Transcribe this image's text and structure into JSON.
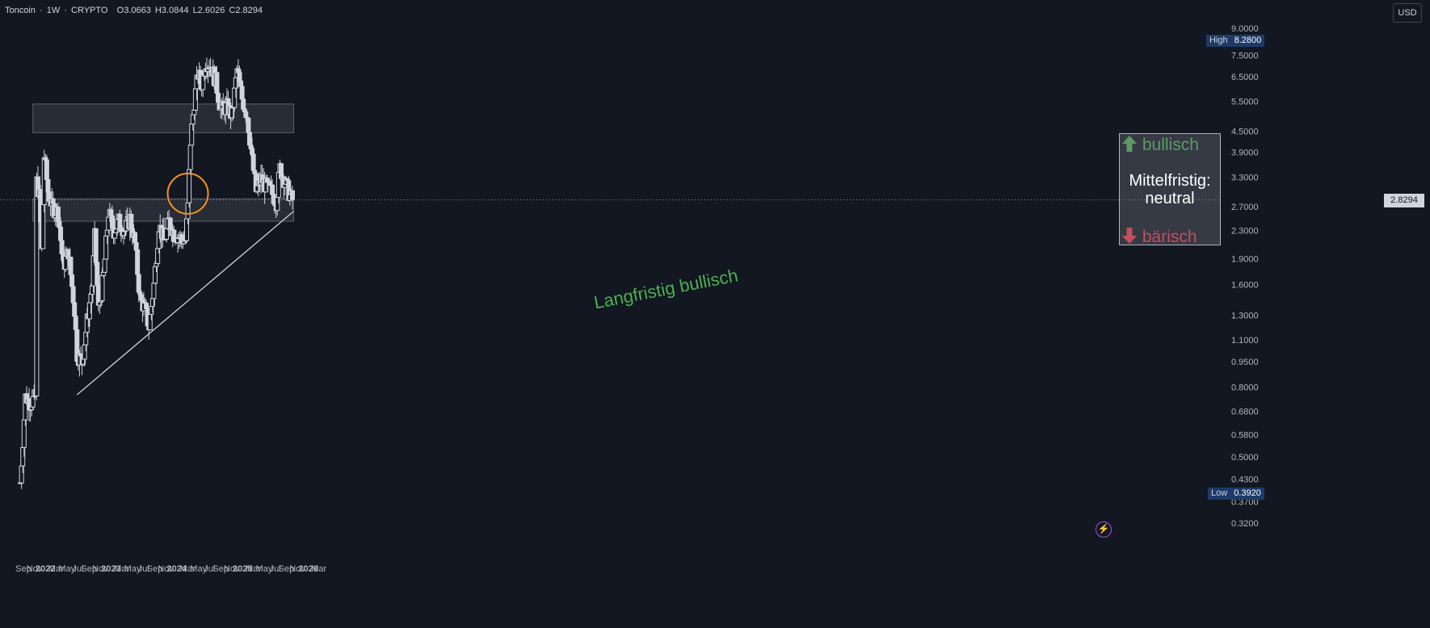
{
  "header": {
    "symbol": "Toncoin",
    "timeframe": "1W",
    "exchange": "CRYPTO",
    "open": "O3.0663",
    "high": "H3.0844",
    "low": "L2.6026",
    "close": "C2.8294"
  },
  "currency_button": "USD",
  "price_axis": {
    "labels": [
      "9.0000",
      "7.5000",
      "6.5000",
      "5.5000",
      "4.5000",
      "3.9000",
      "3.3000",
      "2.7000",
      "2.3000",
      "1.9000",
      "1.6000",
      "1.3000",
      "1.1000",
      "0.9500",
      "0.8000",
      "0.6800",
      "0.5800",
      "0.5000",
      "0.4300",
      "0.3700",
      "0.3200"
    ],
    "scale": "log",
    "high_label": "High",
    "high_value": "8.2800",
    "low_label": "Low",
    "low_value": "0.3920",
    "last_price": "2.8294"
  },
  "time_axis": {
    "labels": [
      "Sep",
      "Nov",
      "2022",
      "Mar",
      "May",
      "Jul",
      "Sep",
      "Nov",
      "2023",
      "Mar",
      "May",
      "Jul",
      "Sep",
      "Nov",
      "2024",
      "Mar",
      "May",
      "Jul",
      "Sep",
      "Nov",
      "2025",
      "Mar",
      "May",
      "Jul",
      "Sep",
      "Nov",
      "2026",
      "Mar"
    ],
    "bold": [
      "2022",
      "2023",
      "2024",
      "2025",
      "2026"
    ]
  },
  "annotations": {
    "bullish_label": "bullisch",
    "bearish_label": "bärisch",
    "neutral_line1": "Mittelfristig:",
    "neutral_line2": "neutral",
    "long_term": "Langfristig bullisch"
  },
  "colors": {
    "background": "#131722",
    "candle": "#d1d4dc",
    "zone_fill": "rgba(120,123,134,0.22)",
    "bullish_green": "#4caf50",
    "bearish_red": "#f23645",
    "highlight_circle": "#f7931a",
    "badge_blue": "#1e3a6a"
  },
  "icons": {
    "bull_arrow": "arrow-up-icon",
    "bear_arrow": "arrow-down-icon",
    "bolt": "lightning-icon"
  },
  "chart_data": {
    "type": "candlestick",
    "scale": "log",
    "ylim": [
      0.3,
      9.5
    ],
    "anchors": [
      [
        "2021-08-15",
        0.42
      ],
      [
        "2021-09-12",
        0.75
      ],
      [
        "2021-10-10",
        0.72
      ],
      [
        "2021-11-07",
        0.75
      ],
      [
        "2021-11-14",
        3.2
      ],
      [
        "2021-11-28",
        2.9
      ],
      [
        "2021-12-12",
        2.0
      ],
      [
        "2021-12-26",
        3.8
      ],
      [
        "2022-01-16",
        3.0
      ],
      [
        "2022-02-06",
        2.7
      ],
      [
        "2022-03-13",
        2.6
      ],
      [
        "2022-04-10",
        1.8
      ],
      [
        "2022-05-08",
        2.0
      ],
      [
        "2022-06-12",
        1.35
      ],
      [
        "2022-06-26",
        1.0
      ],
      [
        "2022-07-24",
        0.95
      ],
      [
        "2022-08-21",
        1.25
      ],
      [
        "2022-09-18",
        1.6
      ],
      [
        "2022-10-02",
        2.2
      ],
      [
        "2022-10-23",
        1.35
      ],
      [
        "2022-11-20",
        1.7
      ],
      [
        "2022-12-18",
        2.6
      ],
      [
        "2023-01-15",
        2.3
      ],
      [
        "2023-02-12",
        2.45
      ],
      [
        "2023-03-19",
        2.3
      ],
      [
        "2023-04-16",
        2.5
      ],
      [
        "2023-05-14",
        2.1
      ],
      [
        "2023-06-11",
        1.45
      ],
      [
        "2023-07-09",
        1.35
      ],
      [
        "2023-07-30",
        1.2
      ],
      [
        "2023-08-27",
        1.6
      ],
      [
        "2023-09-24",
        2.4
      ],
      [
        "2023-10-22",
        2.15
      ],
      [
        "2023-11-19",
        2.45
      ],
      [
        "2023-12-17",
        2.25
      ],
      [
        "2024-01-14",
        2.2
      ],
      [
        "2024-02-18",
        2.15
      ],
      [
        "2024-03-03",
        2.7
      ],
      [
        "2024-03-17",
        4.2
      ],
      [
        "2024-04-07",
        5.5
      ],
      [
        "2024-04-28",
        6.6
      ],
      [
        "2024-05-19",
        6.2
      ],
      [
        "2024-06-09",
        7.2
      ],
      [
        "2024-07-07",
        7.0
      ],
      [
        "2024-08-04",
        6.3
      ],
      [
        "2024-09-01",
        5.2
      ],
      [
        "2024-10-06",
        5.3
      ],
      [
        "2024-11-03",
        5.0
      ],
      [
        "2024-12-01",
        6.8
      ],
      [
        "2024-12-29",
        5.6
      ],
      [
        "2025-01-26",
        5.0
      ],
      [
        "2025-02-23",
        3.7
      ],
      [
        "2025-03-16",
        3.0
      ],
      [
        "2025-04-13",
        3.25
      ],
      [
        "2025-05-11",
        3.1
      ],
      [
        "2025-06-08",
        3.0
      ],
      [
        "2025-07-06",
        2.8
      ],
      [
        "2025-07-27",
        3.5
      ],
      [
        "2025-08-24",
        3.2
      ],
      [
        "2025-09-21",
        2.9
      ],
      [
        "2025-10-05",
        2.8294
      ]
    ],
    "high": 8.28,
    "low": 0.392,
    "last": 2.8294,
    "zones": [
      {
        "name": "resistance",
        "from": 4.45,
        "to": 5.4,
        "x_start": "2021-10-24",
        "x_end": "2025-10-12"
      },
      {
        "name": "support",
        "from": 2.45,
        "to": 2.85,
        "x_start": "2021-10-24",
        "x_end": "2025-10-12"
      }
    ],
    "trendline": {
      "from": [
        "2022-06-26",
        0.76
      ],
      "to": [
        "2025-10-12",
        2.62
      ]
    }
  }
}
